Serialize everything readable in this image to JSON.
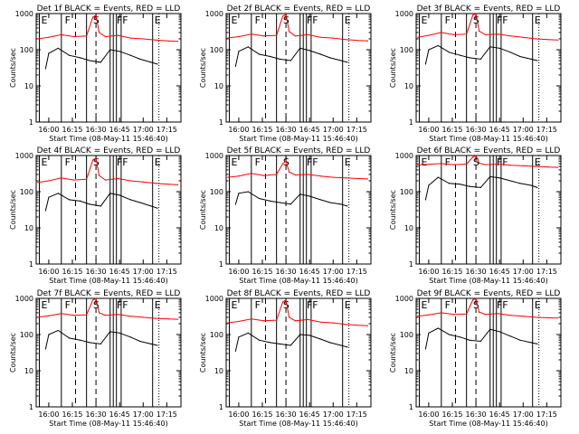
{
  "figure": {
    "xlabel": "Start Time (08-May-11 15:46:40)",
    "ylabel": "Counts/sec",
    "x_ticks": [
      "16:00",
      "16:15",
      "16:30",
      "16:45",
      "17:00",
      "17:15"
    ],
    "y_ticks": [
      "1",
      "10",
      "100",
      "1000"
    ],
    "markers": [
      "E",
      "F",
      "S",
      "FF",
      "E"
    ],
    "colors": {
      "events": "#000000",
      "lld": "#ff0000"
    },
    "detectors": [
      {
        "title": "Det 1f BLACK = Events, RED = LLD"
      },
      {
        "title": "Det 2f BLACK = Events, RED = LLD"
      },
      {
        "title": "Det 3f BLACK = Events, RED = LLD"
      },
      {
        "title": "Det 4f BLACK = Events, RED = LLD"
      },
      {
        "title": "Det 5f BLACK = Events, RED = LLD"
      },
      {
        "title": "Det 6f BLACK = Events, RED = LLD"
      },
      {
        "title": "Det 7f BLACK = Events, RED = LLD"
      },
      {
        "title": "Det 8f BLACK = Events, RED = LLD"
      },
      {
        "title": "Det 9f BLACK = Events, RED = LLD"
      }
    ]
  },
  "chart_data": [
    {
      "type": "line",
      "title": "Det 1f BLACK = Events, RED = LLD",
      "xlabel": "Start Time (08-May-11 15:46:40)",
      "ylabel": "Counts/sec",
      "y_scale": "log",
      "ylim": [
        1,
        1000
      ],
      "x_ticks": [
        "16:00",
        "16:15",
        "16:30",
        "16:45",
        "17:00",
        "17:15"
      ],
      "series": [
        {
          "name": "Events",
          "color": "#000000",
          "x": [
            "15:58",
            "16:00",
            "16:06",
            "16:13",
            "16:20",
            "16:26",
            "16:33",
            "16:39",
            "16:45",
            "16:52",
            "16:58",
            "17:05",
            "17:09"
          ],
          "values": [
            30,
            80,
            110,
            70,
            60,
            50,
            45,
            100,
            90,
            70,
            55,
            45,
            40
          ]
        },
        {
          "name": "LLD",
          "color": "#ff0000",
          "x": [
            "15:53",
            "16:00",
            "16:08",
            "16:16",
            "16:24",
            "16:28",
            "16:30",
            "16:32",
            "16:36",
            "16:44",
            "16:52",
            "17:00",
            "17:08",
            "17:16",
            "17:22"
          ],
          "values": [
            200,
            220,
            260,
            230,
            240,
            800,
            900,
            300,
            230,
            250,
            210,
            200,
            185,
            175,
            170
          ]
        }
      ]
    },
    {
      "type": "line",
      "title": "Det 2f BLACK = Events, RED = LLD",
      "xlabel": "Start Time (08-May-11 15:46:40)",
      "ylabel": "Counts/sec",
      "y_scale": "log",
      "ylim": [
        1,
        1000
      ],
      "x_ticks": [
        "16:00",
        "16:15",
        "16:30",
        "16:45",
        "17:00",
        "17:15"
      ],
      "series": [
        {
          "name": "Events",
          "color": "#000000",
          "x": [
            "15:58",
            "16:00",
            "16:06",
            "16:13",
            "16:20",
            "16:26",
            "16:33",
            "16:39",
            "16:45",
            "16:52",
            "16:58",
            "17:05",
            "17:09"
          ],
          "values": [
            35,
            90,
            120,
            75,
            65,
            55,
            50,
            110,
            95,
            75,
            60,
            50,
            45
          ]
        },
        {
          "name": "LLD",
          "color": "#ff0000",
          "x": [
            "15:53",
            "16:00",
            "16:08",
            "16:16",
            "16:24",
            "16:28",
            "16:30",
            "16:32",
            "16:36",
            "16:44",
            "16:52",
            "17:00",
            "17:08",
            "17:16",
            "17:22"
          ],
          "values": [
            210,
            230,
            270,
            240,
            250,
            850,
            950,
            320,
            240,
            260,
            220,
            210,
            190,
            180,
            175
          ]
        }
      ]
    },
    {
      "type": "line",
      "title": "Det 3f BLACK = Events, RED = LLD",
      "xlabel": "Start Time (08-May-11 15:46:40)",
      "ylabel": "Counts/sec",
      "y_scale": "log",
      "ylim": [
        1,
        1000
      ],
      "x_ticks": [
        "16:00",
        "16:15",
        "16:30",
        "16:45",
        "17:00",
        "17:15"
      ],
      "series": [
        {
          "name": "Events",
          "color": "#000000",
          "x": [
            "15:58",
            "16:00",
            "16:06",
            "16:13",
            "16:20",
            "16:26",
            "16:33",
            "16:39",
            "16:45",
            "16:52",
            "16:58",
            "17:05",
            "17:09"
          ],
          "values": [
            40,
            100,
            130,
            85,
            70,
            60,
            55,
            120,
            110,
            85,
            65,
            55,
            50
          ]
        },
        {
          "name": "LLD",
          "color": "#ff0000",
          "x": [
            "15:53",
            "16:00",
            "16:08",
            "16:16",
            "16:24",
            "16:28",
            "16:30",
            "16:32",
            "16:36",
            "16:44",
            "16:52",
            "17:00",
            "17:08",
            "17:16",
            "17:22"
          ],
          "values": [
            220,
            250,
            300,
            260,
            270,
            900,
            1000,
            330,
            260,
            270,
            240,
            220,
            200,
            190,
            185
          ]
        }
      ]
    },
    {
      "type": "line",
      "title": "Det 4f BLACK = Events, RED = LLD",
      "xlabel": "Start Time (08-May-11 15:46:40)",
      "ylabel": "Counts/sec",
      "y_scale": "log",
      "ylim": [
        1,
        1000
      ],
      "x_ticks": [
        "16:00",
        "16:15",
        "16:30",
        "16:45",
        "17:00",
        "17:15"
      ],
      "series": [
        {
          "name": "Events",
          "color": "#000000",
          "x": [
            "15:58",
            "16:00",
            "16:06",
            "16:13",
            "16:20",
            "16:26",
            "16:33",
            "16:39",
            "16:45",
            "16:52",
            "16:58",
            "17:05",
            "17:09"
          ],
          "values": [
            30,
            70,
            90,
            60,
            55,
            45,
            40,
            90,
            80,
            60,
            50,
            40,
            35
          ]
        },
        {
          "name": "LLD",
          "color": "#ff0000",
          "x": [
            "15:53",
            "16:00",
            "16:08",
            "16:16",
            "16:24",
            "16:28",
            "16:30",
            "16:32",
            "16:36",
            "16:44",
            "16:52",
            "17:00",
            "17:08",
            "17:16",
            "17:22"
          ],
          "values": [
            180,
            200,
            240,
            210,
            220,
            750,
            850,
            280,
            210,
            230,
            200,
            185,
            170,
            160,
            155
          ]
        }
      ]
    },
    {
      "type": "line",
      "title": "Det 5f BLACK = Events, RED = LLD",
      "xlabel": "Start Time (08-May-11 15:46:40)",
      "ylabel": "Counts/sec",
      "y_scale": "log",
      "ylim": [
        1,
        1000
      ],
      "x_ticks": [
        "16:00",
        "16:15",
        "16:30",
        "16:45",
        "17:00",
        "17:15"
      ],
      "series": [
        {
          "name": "Events",
          "color": "#000000",
          "x": [
            "15:58",
            "16:00",
            "16:06",
            "16:13",
            "16:20",
            "16:26",
            "16:33",
            "16:39",
            "16:45",
            "16:52",
            "16:58",
            "17:05",
            "17:09"
          ],
          "values": [
            45,
            90,
            100,
            65,
            55,
            50,
            45,
            85,
            75,
            60,
            50,
            45,
            40
          ]
        },
        {
          "name": "LLD",
          "color": "#ff0000",
          "x": [
            "15:53",
            "16:00",
            "16:08",
            "16:16",
            "16:24",
            "16:28",
            "16:30",
            "16:32",
            "16:36",
            "16:44",
            "16:52",
            "17:00",
            "17:08",
            "17:16",
            "17:22"
          ],
          "values": [
            250,
            270,
            320,
            280,
            300,
            600,
            700,
            350,
            290,
            300,
            270,
            250,
            240,
            230,
            225
          ]
        }
      ]
    },
    {
      "type": "line",
      "title": "Det 6f BLACK = Events, RED = LLD",
      "xlabel": "Start Time (08-May-11 15:46:40)",
      "ylabel": "Counts/sec",
      "y_scale": "log",
      "ylim": [
        1,
        1000
      ],
      "x_ticks": [
        "16:00",
        "16:15",
        "16:30",
        "16:45",
        "17:00",
        "17:15"
      ],
      "series": [
        {
          "name": "Events",
          "color": "#000000",
          "x": [
            "15:58",
            "16:00",
            "16:06",
            "16:13",
            "16:20",
            "16:26",
            "16:33",
            "16:39",
            "16:45",
            "16:52",
            "16:58",
            "17:05",
            "17:09"
          ],
          "values": [
            60,
            150,
            250,
            170,
            160,
            140,
            130,
            260,
            240,
            200,
            170,
            150,
            130
          ]
        },
        {
          "name": "LLD",
          "color": "#ff0000",
          "x": [
            "15:53",
            "16:00",
            "16:08",
            "16:16",
            "16:24",
            "16:28",
            "16:30",
            "16:32",
            "16:36",
            "16:44",
            "16:52",
            "17:00",
            "17:08",
            "17:16",
            "17:22"
          ],
          "values": [
            550,
            570,
            600,
            560,
            580,
            900,
            1000,
            620,
            560,
            580,
            540,
            520,
            500,
            480,
            470
          ]
        }
      ]
    },
    {
      "type": "line",
      "title": "Det 7f BLACK = Events, RED = LLD",
      "xlabel": "Start Time (08-May-11 15:46:40)",
      "ylabel": "Counts/sec",
      "y_scale": "log",
      "ylim": [
        1,
        1000
      ],
      "x_ticks": [
        "16:00",
        "16:15",
        "16:30",
        "16:45",
        "17:00",
        "17:15"
      ],
      "series": [
        {
          "name": "Events",
          "color": "#000000",
          "x": [
            "15:58",
            "16:00",
            "16:06",
            "16:13",
            "16:20",
            "16:26",
            "16:33",
            "16:39",
            "16:45",
            "16:52",
            "16:58",
            "17:05",
            "17:09"
          ],
          "values": [
            40,
            100,
            130,
            80,
            70,
            60,
            55,
            120,
            110,
            85,
            65,
            55,
            50
          ]
        },
        {
          "name": "LLD",
          "color": "#ff0000",
          "x": [
            "15:53",
            "16:00",
            "16:08",
            "16:16",
            "16:24",
            "16:28",
            "16:30",
            "16:32",
            "16:36",
            "16:44",
            "16:52",
            "17:00",
            "17:08",
            "17:16",
            "17:22"
          ],
          "values": [
            300,
            330,
            380,
            340,
            350,
            900,
            1000,
            400,
            340,
            360,
            320,
            300,
            280,
            270,
            265
          ]
        }
      ]
    },
    {
      "type": "line",
      "title": "Det 8f BLACK = Events, RED = LLD",
      "xlabel": "Start Time (08-May-11 15:46:40)",
      "ylabel": "Counts/sec",
      "y_scale": "log",
      "ylim": [
        1,
        1000
      ],
      "x_ticks": [
        "16:00",
        "16:15",
        "16:30",
        "16:45",
        "17:00",
        "17:15"
      ],
      "series": [
        {
          "name": "Events",
          "color": "#000000",
          "x": [
            "15:58",
            "16:00",
            "16:06",
            "16:13",
            "16:20",
            "16:26",
            "16:33",
            "16:39",
            "16:45",
            "16:52",
            "16:58",
            "17:05",
            "17:09"
          ],
          "values": [
            35,
            85,
            110,
            70,
            60,
            55,
            50,
            100,
            95,
            75,
            60,
            50,
            45
          ]
        },
        {
          "name": "LLD",
          "color": "#ff0000",
          "x": [
            "15:53",
            "16:00",
            "16:08",
            "16:16",
            "16:24",
            "16:28",
            "16:30",
            "16:32",
            "16:36",
            "16:44",
            "16:52",
            "17:00",
            "17:08",
            "17:16",
            "17:22"
          ],
          "values": [
            210,
            230,
            270,
            240,
            250,
            800,
            900,
            300,
            240,
            260,
            220,
            210,
            190,
            180,
            175
          ]
        }
      ]
    },
    {
      "type": "line",
      "title": "Det 9f BLACK = Events, RED = LLD",
      "xlabel": "Start Time (08-May-11 15:46:40)",
      "ylabel": "Counts/sec",
      "y_scale": "log",
      "ylim": [
        1,
        1000
      ],
      "x_ticks": [
        "16:00",
        "16:15",
        "16:30",
        "16:45",
        "17:00",
        "17:15"
      ],
      "series": [
        {
          "name": "Events",
          "color": "#000000",
          "x": [
            "15:58",
            "16:00",
            "16:06",
            "16:13",
            "16:20",
            "16:26",
            "16:33",
            "16:39",
            "16:45",
            "16:52",
            "16:58",
            "17:05",
            "17:09"
          ],
          "values": [
            40,
            110,
            150,
            100,
            85,
            70,
            65,
            140,
            120,
            90,
            70,
            60,
            55
          ]
        },
        {
          "name": "LLD",
          "color": "#ff0000",
          "x": [
            "15:53",
            "16:00",
            "16:08",
            "16:16",
            "16:24",
            "16:28",
            "16:30",
            "16:32",
            "16:36",
            "16:44",
            "16:52",
            "17:00",
            "17:08",
            "17:16",
            "17:22"
          ],
          "values": [
            320,
            350,
            400,
            360,
            370,
            900,
            1000,
            420,
            360,
            380,
            340,
            320,
            300,
            290,
            285
          ]
        }
      ]
    }
  ]
}
